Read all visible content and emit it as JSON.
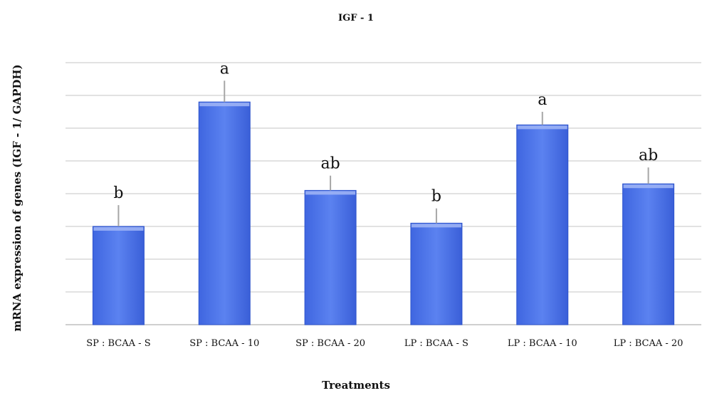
{
  "chart_data": {
    "type": "bar",
    "title": "IGF - 1",
    "xlabel": "Treatments",
    "ylabel": "mRNA expression of genes (IGF - 1/ GAPDH)",
    "categories": [
      "SP : BCAA - S",
      "SP : BCAA - 10",
      "SP : BCAA - 20",
      "LP : BCAA - S",
      "LP : BCAA - 10",
      "LP : BCAA - 20"
    ],
    "values": [
      3.0,
      6.8,
      4.1,
      3.1,
      6.1,
      4.3
    ],
    "error": [
      0.65,
      0.65,
      0.45,
      0.45,
      0.4,
      0.5
    ],
    "significance_letters": [
      "b",
      "a",
      "ab",
      "b",
      "a",
      "ab"
    ],
    "ylim": [
      0,
      8
    ],
    "grid": true,
    "y_tick_labels_shown": false,
    "colors": {
      "bar": "#4a72e8",
      "bar_edge": "#2f55cc",
      "error_bar": "#a6a6a6",
      "grid": "#d9d9d9"
    }
  }
}
